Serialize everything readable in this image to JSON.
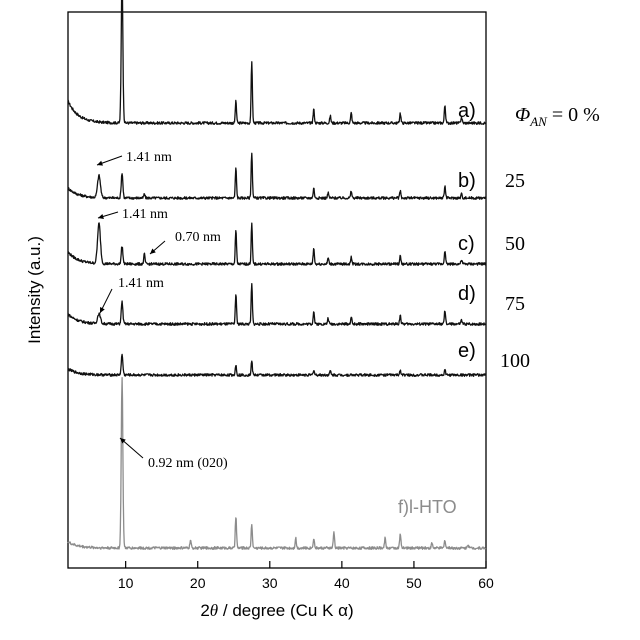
{
  "chart_data": {
    "type": "line",
    "title": "",
    "xlabel": "2θ / degree (Cu K α)",
    "xlabel_parts": {
      "pre": "2",
      "theta": "θ",
      "post": " / degree (Cu K α)"
    },
    "ylabel": "Intensity (a.u.)",
    "xlim": [
      2,
      60
    ],
    "xticks": [
      10,
      20,
      30,
      40,
      50,
      60
    ],
    "xtick_labels": [
      "10",
      "20",
      "30",
      "40",
      "50",
      "60"
    ],
    "yticks_shown": false,
    "grid": false,
    "legend": "right",
    "legend_header": {
      "symbol": "Φ",
      "sub": "AN",
      "rest": " = 0 %"
    },
    "series": [
      {
        "name": "a)",
        "label": "a)",
        "fraction": "",
        "color": "#111111",
        "ref_color": "#cccccc",
        "peaks": [
          [
            9.5,
            145
          ],
          [
            25.3,
            22
          ],
          [
            27.5,
            62
          ],
          [
            36.1,
            14
          ],
          [
            38.4,
            7
          ],
          [
            41.3,
            10
          ],
          [
            48.1,
            10
          ],
          [
            54.3,
            18
          ],
          [
            56.6,
            6
          ]
        ],
        "low_angle_bump": 22
      },
      {
        "name": "b)",
        "label": "b)",
        "fraction": "25",
        "color": "#111111",
        "peaks": [
          [
            6.3,
            22
          ],
          [
            9.5,
            25
          ],
          [
            12.6,
            4
          ],
          [
            25.3,
            30
          ],
          [
            27.5,
            46
          ],
          [
            36.1,
            10
          ],
          [
            38.1,
            5
          ],
          [
            41.3,
            7
          ],
          [
            48.1,
            7
          ],
          [
            54.3,
            12
          ],
          [
            56.6,
            4
          ]
        ],
        "low_angle_bump": 10
      },
      {
        "name": "c)",
        "label": "c)",
        "fraction": "50",
        "color": "#111111",
        "peaks": [
          [
            6.3,
            40
          ],
          [
            9.5,
            18
          ],
          [
            12.6,
            10
          ],
          [
            25.3,
            34
          ],
          [
            27.5,
            40
          ],
          [
            36.1,
            16
          ],
          [
            38.1,
            6
          ],
          [
            41.3,
            7
          ],
          [
            48.1,
            8
          ],
          [
            54.3,
            14
          ],
          [
            56.6,
            4
          ]
        ],
        "low_angle_bump": 12
      },
      {
        "name": "d)",
        "label": "d)",
        "fraction": "75",
        "color": "#111111",
        "peaks": [
          [
            6.3,
            10
          ],
          [
            9.5,
            22
          ],
          [
            25.3,
            30
          ],
          [
            27.5,
            40
          ],
          [
            36.1,
            13
          ],
          [
            38.1,
            6
          ],
          [
            41.3,
            7
          ],
          [
            48.1,
            9
          ],
          [
            54.3,
            13
          ],
          [
            56.6,
            4
          ]
        ],
        "low_angle_bump": 10
      },
      {
        "name": "e)",
        "label": "e)",
        "fraction": "100",
        "color": "#111111",
        "peaks": [
          [
            9.5,
            20
          ],
          [
            25.3,
            10
          ],
          [
            27.5,
            14
          ],
          [
            36.1,
            5
          ],
          [
            38.4,
            4
          ],
          [
            48.1,
            5
          ],
          [
            54.3,
            5
          ]
        ],
        "low_angle_bump": 6
      },
      {
        "name": "f)l-HTO",
        "label": "f)l-HTO",
        "fraction": "",
        "color": "#8c8c8c",
        "peaks": [
          [
            9.5,
            170
          ],
          [
            19.0,
            8
          ],
          [
            25.3,
            32
          ],
          [
            27.5,
            24
          ],
          [
            33.6,
            10
          ],
          [
            36.1,
            10
          ],
          [
            38.9,
            16
          ],
          [
            46.0,
            10
          ],
          [
            48.1,
            14
          ],
          [
            52.5,
            5
          ],
          [
            54.3,
            8
          ],
          [
            57.5,
            4
          ]
        ],
        "low_angle_bump": 6
      }
    ],
    "annotations": [
      {
        "text": "1.41 nm",
        "series": "b)",
        "x": 6.3
      },
      {
        "text": "1.41 nm",
        "series": "c)",
        "x": 6.3
      },
      {
        "text": "0.70 nm",
        "series": "c)",
        "x": 12.6
      },
      {
        "text": "1.41 nm",
        "series": "d)",
        "x": 6.3
      },
      {
        "text": "0.92 nm (020)",
        "series": "f)l-HTO",
        "x": 9.5
      }
    ]
  }
}
